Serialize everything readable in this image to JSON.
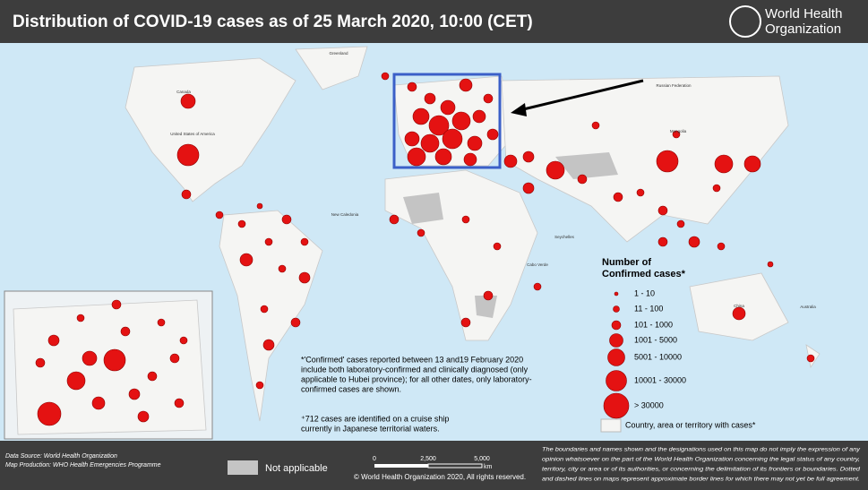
{
  "header": {
    "title": "Distribution of COVID-19  cases as of 25 March 2020, 10:00 (CET)",
    "logo": [
      "World Health",
      "Organization"
    ]
  },
  "map": {
    "labels": [
      "Greenland",
      "Canada",
      "United States of America",
      "Russian Federation",
      "Mongolia",
      "China",
      "Australia",
      "New Caledonia",
      "Cabo Verde",
      "Seychelles"
    ]
  },
  "legend": {
    "title": [
      "Number of",
      "Confirmed cases*"
    ],
    "items": [
      "1 - 10",
      "11 - 100",
      "101 - 1000",
      "1001 - 5000",
      "5001 - 10000",
      "10001 - 30000",
      "> 30000"
    ],
    "territory": "Country, area or territory with cases*"
  },
  "notes": {
    "confirmed": [
      "*'Confirmed' cases reported between 13 and19 February 2020",
      "include both laboratory-confirmed and clinically diagnosed (only",
      "applicable to Hubei province); for all other dates, only laboratory-",
      "confirmed cases are shown."
    ],
    "cruise": [
      "⁺712 cases are identified on a cruise ship",
      "currently in Japanese territorial waters."
    ]
  },
  "footer": {
    "data_source": "Data Source: World Health Organization",
    "map_production": "Map Production: WHO Health Emergencies Programme",
    "not_applicable": "Not applicable",
    "scale": [
      "0",
      "2,500",
      "5,000",
      "km"
    ],
    "copyright": "© World Health Organization 2020, All rights reserved.",
    "disclaimer": [
      "The boundaries and names shown and the designations used on this map do not imply the expression of any",
      "opinion whatsoever on the part of the World Health Organization concerning the legal status of any country,",
      "territory, city or area or of its authorities, or concerning the delimitation of its frontiers or boundaries. Dotted",
      "and dashed lines on maps represent approximate border lines for which there may not yet be full agreement."
    ]
  }
}
